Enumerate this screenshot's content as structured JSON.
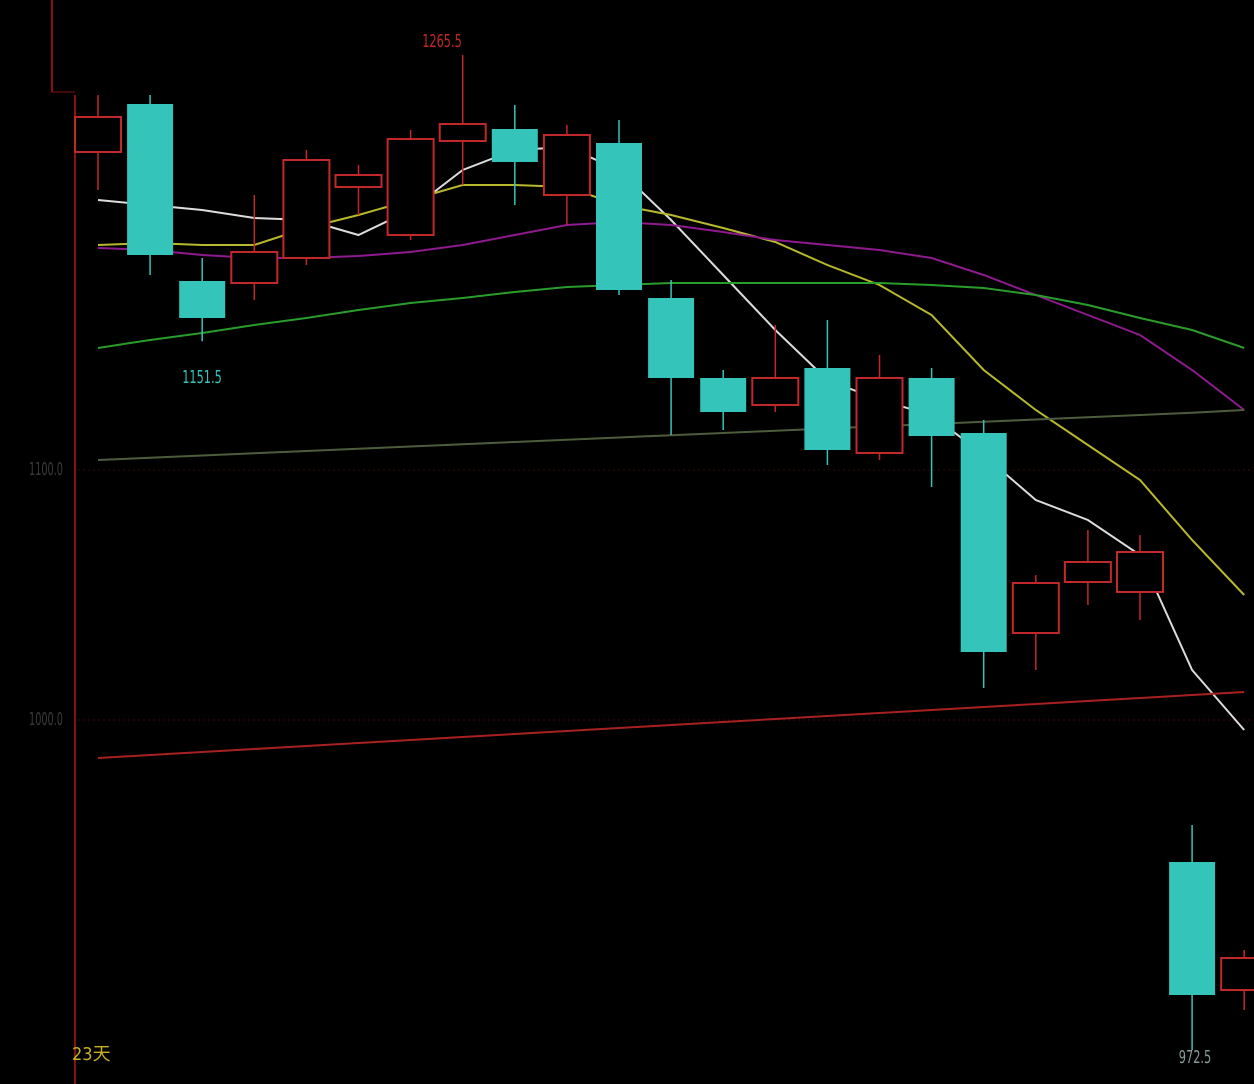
{
  "chart_data": {
    "type": "candlestick",
    "period_label": "23天",
    "annotations": [
      "1151.5",
      "1265.5",
      "972.5"
    ],
    "ylim": [
      854.4,
      1288
    ],
    "yticks": [
      {
        "value": 1000,
        "label": "1000.0"
      },
      {
        "value": 1100,
        "label": "1100.0"
      }
    ],
    "grid": true,
    "up_color": "#c0282a",
    "down_color": "#35c4ba",
    "candles": {
      "open": [
        1227.2,
        1246.4,
        1175.6,
        1174.8,
        1184.8,
        1213.2,
        1194,
        1231.6,
        1236.4,
        1210,
        1230.8,
        1168.8,
        1136.8,
        1126,
        1140.8,
        1106.8,
        1136.8,
        1114.8,
        1034.8,
        1055.2,
        1051.2,
        943.2,
        892
      ],
      "high": [
        1250,
        1250,
        1184.8,
        1210,
        1228,
        1222,
        1236,
        1266,
        1246,
        1238,
        1240,
        1176,
        1140,
        1158,
        1160,
        1146,
        1140.8,
        1120,
        1058,
        1076,
        1074,
        958,
        908
      ],
      "low": [
        1212,
        1178,
        1151.5,
        1168,
        1182,
        1202,
        1192,
        1214,
        1206,
        1198,
        1170,
        1114,
        1116,
        1123.2,
        1102,
        1104,
        1093.2,
        1012.8,
        1020,
        1046,
        1040,
        868,
        884
      ],
      "close": [
        1241.2,
        1186,
        1160.8,
        1187.2,
        1224,
        1218,
        1232.4,
        1238.4,
        1223.2,
        1234,
        1172,
        1136.8,
        1123.2,
        1136.8,
        1108,
        1136.8,
        1113.6,
        1027.2,
        1054.8,
        1063.2,
        1067.2,
        890,
        904.8
      ]
    },
    "series": [
      {
        "color": "#dcdcdc",
        "values": [
          1208,
          1206,
          1204,
          1200.8,
          1200,
          1194,
          1204,
          1220,
          1228,
          1229.2,
          1220,
          1200,
          1178,
          1156,
          1136,
          1128,
          1122,
          1106,
          1088,
          1080,
          1066,
          1020,
          996
        ]
      },
      {
        "color": "#b8b82c",
        "values": [
          1190,
          1190.8,
          1190,
          1190,
          1196.8,
          1202,
          1208,
          1214,
          1214,
          1213.2,
          1206,
          1202,
          1196.8,
          1191.2,
          1182,
          1174,
          1162,
          1140,
          1124,
          1110,
          1096,
          1072,
          1050
        ]
      },
      {
        "color": "#8e1a8e",
        "values": [
          1188.8,
          1188,
          1186,
          1184.8,
          1184.8,
          1185.6,
          1187.2,
          1190,
          1194,
          1198,
          1199.2,
          1198,
          1195.2,
          1192,
          1190,
          1188,
          1184.8,
          1178,
          1170,
          1162,
          1154,
          1140,
          1124
        ]
      },
      {
        "color": "#2a9c2a",
        "values": [
          1148.8,
          1152,
          1154.8,
          1158,
          1160.8,
          1164,
          1166.8,
          1168.8,
          1171.2,
          1173.2,
          1174,
          1174.8,
          1174.8,
          1174.8,
          1174.8,
          1174.8,
          1174,
          1172.8,
          1170,
          1166,
          1160.8,
          1156,
          1148.8
        ]
      },
      {
        "color": "#4c5c3c",
        "values": [
          1104,
          1104.9,
          1105.8,
          1106.7,
          1107.6,
          1108.5,
          1109.4,
          1110.3,
          1111.2,
          1112.1,
          1113,
          1113.9,
          1114.8,
          1115.7,
          1116.6,
          1117.5,
          1118.4,
          1119.3,
          1120.2,
          1121.1,
          1122,
          1122.9,
          1124
        ]
      },
      {
        "color": "#a82020",
        "values": [
          984.8,
          986,
          987.2,
          988.4,
          989.6,
          990.8,
          992,
          993.2,
          994.4,
          995.6,
          996.8,
          998,
          999.2,
          1000.4,
          1001.6,
          1002.8,
          1004,
          1005.2,
          1006.4,
          1007.6,
          1008.8,
          1010,
          1011.2
        ]
      }
    ]
  }
}
